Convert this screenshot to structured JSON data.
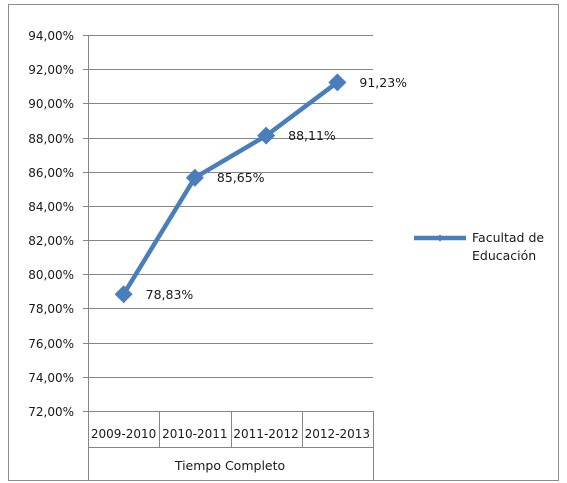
{
  "chart_data": {
    "type": "line",
    "title": "",
    "xlabel": "Tiempo Completo",
    "ylabel": "",
    "categories": [
      "2009-2010",
      "2010-2011",
      "2011-2012",
      "2012-2013"
    ],
    "series": [
      {
        "name": "Facultad de Educación",
        "name_lines": [
          "Facultad de",
          "Educación"
        ],
        "values": [
          78.83,
          85.65,
          88.11,
          91.23
        ],
        "value_labels": [
          "78,83%",
          "85,65%",
          "88,11%",
          "91,23%"
        ],
        "color": "#4a7ebb",
        "marker": "diamond"
      }
    ],
    "ylim": [
      72,
      94
    ],
    "y_step": 2,
    "y_tick_labels": [
      "72,00%",
      "74,00%",
      "76,00%",
      "78,00%",
      "80,00%",
      "82,00%",
      "84,00%",
      "86,00%",
      "88,00%",
      "90,00%",
      "92,00%",
      "94,00%"
    ],
    "grid": true,
    "legend_position": "right"
  }
}
